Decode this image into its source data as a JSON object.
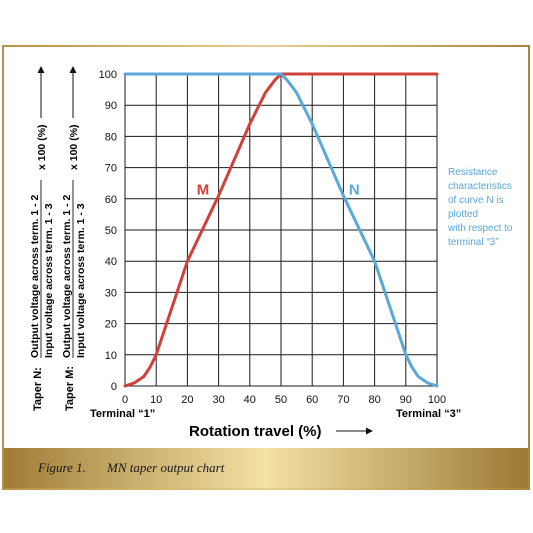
{
  "chart_data": {
    "type": "line",
    "xlim": [
      0,
      100
    ],
    "ylim": [
      0,
      100
    ],
    "x_ticks": [
      0,
      10,
      20,
      30,
      40,
      50,
      60,
      70,
      80,
      90,
      100
    ],
    "y_ticks": [
      0,
      10,
      20,
      30,
      40,
      50,
      60,
      70,
      80,
      90,
      100
    ],
    "x_ticks_labels": [
      "0",
      "10",
      "20",
      "30",
      "40",
      "50",
      "60",
      "70",
      "80",
      "90",
      "100"
    ],
    "y_ticks_labels": [
      "0",
      "10",
      "20",
      "30",
      "40",
      "50",
      "60",
      "70",
      "80",
      "90",
      "100"
    ],
    "grid": true,
    "xlabel": "Rotation travel (%)",
    "x_start_label": "Terminal “1”",
    "x_end_label": "Terminal “3”",
    "ylabel_taper_n": {
      "prefix": "Taper N:",
      "numerator": "Output voltage across term. 1 - 2",
      "denominator": "Input voltage across term. 1 - 3",
      "suffix": "x 100 (%)"
    },
    "ylabel_taper_m": {
      "prefix": "Taper M:",
      "numerator": "Output voltage across term. 1 - 2",
      "denominator": "Input voltage across term. 1 - 3",
      "suffix": "x 100 (%)"
    },
    "series": [
      {
        "name": "M",
        "color": "#d0413a",
        "x": [
          0,
          3,
          6,
          8,
          10,
          12,
          20,
          30,
          40,
          45,
          48,
          50,
          100
        ],
        "y": [
          0,
          1,
          3,
          6,
          10,
          16,
          40,
          61,
          84,
          94,
          98,
          100,
          100
        ]
      },
      {
        "name": "N",
        "color": "#5aa7da",
        "x": [
          0,
          50,
          52,
          55,
          60,
          70,
          80,
          88,
          90,
          92,
          94,
          97,
          100
        ],
        "y": [
          100,
          100,
          98,
          94,
          84,
          61,
          40,
          16,
          10,
          6,
          3,
          1,
          0
        ]
      }
    ],
    "annotation": {
      "lines": [
        "Resistance",
        "characteristics",
        "of curve N is",
        "plotted",
        "with respect to",
        "terminal “3”"
      ],
      "color": "#5aa7da"
    }
  },
  "caption": {
    "figure_label": "Figure 1.",
    "text": "MN taper output chart"
  },
  "colors": {
    "frame_border": "#b08a3e",
    "caption_gold_light": "#f3dea0",
    "caption_gold_dark": "#9c7a34",
    "grid": "#1a1a1a"
  }
}
